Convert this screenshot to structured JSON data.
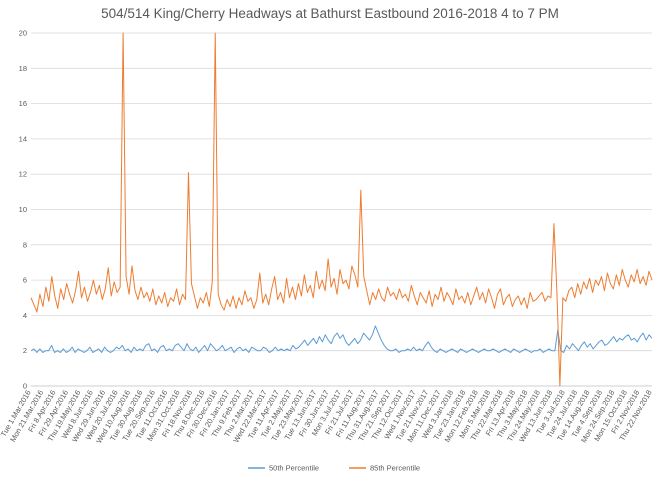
{
  "chart_data": {
    "type": "line",
    "title": "504/514 King/Cherry Headways at Bathurst Eastbound 2016-2018 4 to 7 PM",
    "xlabel": "",
    "ylabel": "",
    "ylim": [
      0,
      20
    ],
    "yticks": [
      "0",
      "2",
      "4",
      "6",
      "8",
      "10",
      "12",
      "14",
      "16",
      "18",
      "20"
    ],
    "grid": "horizontal",
    "legend_position": "bottom",
    "x_labels": [
      "Tue 1.Mar.2016",
      "Mon 21.Mar.2016",
      "Fri 8.Apr.2016",
      "Fri 29.Apr.2016",
      "Thu 19.May.2016",
      "Wed 8.Jun.2016",
      "Wed 29.Jun.2016",
      "Wed 20.Jul.2016",
      "Wed 10.Aug.2016",
      "Tue 30.Aug.2016",
      "Tue 20.Sep.2016",
      "Tue 11.Oct.2016",
      "Mon 31.Oct.2016",
      "Fri 18.Nov.2016",
      "Thu 8.Dec.2016",
      "Fri 30.Dec.2016",
      "Fri 20.Jan.2017",
      "Thu 9.Feb.2017",
      "Thu 2.Mar.2017",
      "Wed 22.Mar.2017",
      "Tue 11.Apr.2017",
      "Tue 2.May.2017",
      "Tue 23.May.2017",
      "Tue 13.Jun.2017",
      "Fri 30.Jun.2017",
      "Mon 3.Jul.2017",
      "Fri 21.Jul.2017",
      "Fri 11.Aug.2017",
      "Thu 31.Aug.2017",
      "Thu 21.Sep.2017",
      "Thu 12.Oct.2017",
      "Wed 1.Nov.2017",
      "Tue 21.Nov.2017",
      "Mon 11.Dec.2017",
      "Wed 3.Jan.2018",
      "Tue 23.Jan.2018",
      "Mon 12.Feb.2018",
      "Mon 5.Mar.2018",
      "Thu 22.Mar.2018",
      "Fri 13.Apr.2018",
      "Thu 3.May.2018",
      "Thu 24.May.2018",
      "Wed 13.Jun.2018",
      "Tue 3.Jul.2018",
      "Tue 24.Jul.2018",
      "Tue 14.Aug.2018",
      "Tue 4.Sep.2018",
      "Mon 24.Sep.2018",
      "Mon 15.Oct.2018",
      "Fri 2.Nov.2018",
      "Thu 22.Nov.2018"
    ],
    "series": [
      {
        "name": "50th Percentile",
        "color": "#5B9BD5",
        "values": [
          2.0,
          2.1,
          1.9,
          2.1,
          1.9,
          2.0,
          2.0,
          2.3,
          1.9,
          2.0,
          1.9,
          2.1,
          1.9,
          2.0,
          2.2,
          1.9,
          2.1,
          2.0,
          1.9,
          2.0,
          2.2,
          1.9,
          2.0,
          2.1,
          1.9,
          2.2,
          2.0,
          1.9,
          2.0,
          2.2,
          2.1,
          2.3,
          2.0,
          2.1,
          1.9,
          2.2,
          2.0,
          2.1,
          2.0,
          2.3,
          2.4,
          2.0,
          2.1,
          1.9,
          2.2,
          2.3,
          2.0,
          2.1,
          2.0,
          2.3,
          2.4,
          2.2,
          2.0,
          2.4,
          2.1,
          2.0,
          2.2,
          1.9,
          2.1,
          2.3,
          2.0,
          2.4,
          2.2,
          2.0,
          2.1,
          2.3,
          2.0,
          2.1,
          2.2,
          1.9,
          2.1,
          2.2,
          2.0,
          2.1,
          1.9,
          2.2,
          2.1,
          2.0,
          2.0,
          2.2,
          2.1,
          1.9,
          2.0,
          2.2,
          2.0,
          2.1,
          2.0,
          2.1,
          2.0,
          2.3,
          2.1,
          2.2,
          2.4,
          2.6,
          2.3,
          2.5,
          2.7,
          2.4,
          2.8,
          2.5,
          2.9,
          2.6,
          2.4,
          2.8,
          3.0,
          2.7,
          2.9,
          2.5,
          2.3,
          2.5,
          2.7,
          2.4,
          2.6,
          3.0,
          2.8,
          2.6,
          2.9,
          3.4,
          3.0,
          2.6,
          2.3,
          2.1,
          2.0,
          2.0,
          2.1,
          1.9,
          2.0,
          2.0,
          2.1,
          2.0,
          2.2,
          2.0,
          2.1,
          2.0,
          2.3,
          2.5,
          2.2,
          2.0,
          1.9,
          2.1,
          2.0,
          1.9,
          2.0,
          2.1,
          2.0,
          1.9,
          2.1,
          2.0,
          1.9,
          2.0,
          2.1,
          2.0,
          1.9,
          2.0,
          2.1,
          2.0,
          2.0,
          2.1,
          2.0,
          1.9,
          2.0,
          2.1,
          2.0,
          1.9,
          2.1,
          2.0,
          1.9,
          2.0,
          2.1,
          2.0,
          1.9,
          2.0,
          2.0,
          2.1,
          1.9,
          2.0,
          2.1,
          2.0,
          2.0,
          3.2,
          2.0,
          1.9,
          2.3,
          2.1,
          2.4,
          2.2,
          2.0,
          2.3,
          2.5,
          2.2,
          2.4,
          2.1,
          2.3,
          2.5,
          2.6,
          2.3,
          2.4,
          2.6,
          2.8,
          2.5,
          2.7,
          2.6,
          2.8,
          2.9,
          2.6,
          2.7,
          2.5,
          2.8,
          3.0,
          2.6,
          2.9,
          2.7
        ]
      },
      {
        "name": "85th Percentile",
        "color": "#ED7D31",
        "values": [
          5.0,
          4.6,
          4.2,
          5.2,
          4.5,
          5.6,
          4.8,
          6.2,
          5.1,
          4.4,
          5.5,
          4.9,
          5.8,
          5.2,
          4.7,
          5.4,
          6.5,
          5.0,
          5.6,
          4.8,
          5.3,
          6.0,
          5.2,
          5.7,
          4.9,
          5.5,
          6.7,
          5.1,
          5.9,
          5.3,
          5.6,
          20.0,
          6.2,
          5.2,
          6.8,
          5.4,
          4.9,
          5.6,
          5.0,
          5.3,
          4.8,
          5.5,
          4.6,
          5.1,
          4.7,
          5.3,
          4.5,
          5.0,
          4.8,
          5.5,
          4.6,
          5.2,
          4.9,
          12.1,
          5.8,
          5.1,
          4.4,
          5.0,
          4.7,
          5.3,
          4.5,
          5.9,
          20.0,
          5.2,
          4.6,
          4.3,
          4.9,
          4.5,
          5.1,
          4.4,
          5.0,
          4.6,
          5.4,
          4.8,
          5.0,
          4.4,
          4.9,
          6.4,
          4.7,
          5.2,
          4.6,
          5.5,
          6.2,
          4.9,
          5.3,
          4.7,
          6.1,
          5.0,
          5.6,
          4.9,
          5.8,
          5.1,
          6.3,
          5.3,
          5.7,
          5.0,
          6.5,
          5.5,
          6.0,
          5.4,
          7.2,
          5.6,
          6.1,
          5.2,
          6.6,
          5.8,
          6.0,
          5.5,
          6.8,
          6.3,
          5.6,
          11.1,
          6.2,
          5.4,
          4.6,
          5.3,
          4.9,
          5.5,
          5.0,
          4.8,
          5.6,
          5.1,
          5.3,
          4.9,
          5.5,
          5.0,
          5.2,
          4.8,
          5.7,
          5.1,
          4.6,
          5.3,
          5.0,
          4.7,
          5.4,
          4.5,
          5.2,
          4.9,
          5.6,
          4.8,
          5.3,
          5.0,
          4.6,
          5.5,
          4.9,
          5.1,
          4.7,
          5.3,
          4.6,
          5.1,
          5.6,
          4.9,
          5.3,
          4.7,
          5.5,
          5.0,
          4.4,
          5.2,
          5.5,
          4.6,
          5.0,
          5.2,
          4.5,
          4.9,
          5.1,
          4.6,
          5.0,
          4.4,
          5.3,
          4.8,
          4.9,
          5.1,
          5.3,
          4.8,
          5.1,
          5.0,
          9.2,
          5.3,
          0.0,
          5.0,
          4.8,
          5.4,
          5.6,
          5.0,
          5.8,
          5.2,
          5.9,
          5.5,
          6.1,
          5.3,
          6.0,
          5.7,
          6.2,
          5.4,
          6.4,
          5.8,
          5.5,
          6.3,
          5.7,
          6.6,
          6.0,
          5.6,
          6.3,
          5.9,
          6.6,
          5.8,
          6.2,
          5.7,
          6.5,
          6.0
        ]
      }
    ]
  }
}
